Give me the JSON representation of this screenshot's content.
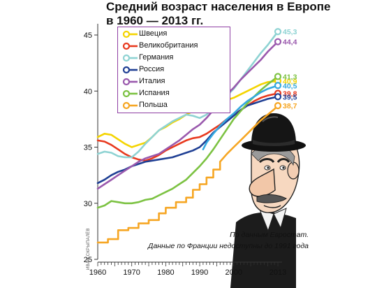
{
  "title": {
    "line1": "Средний возраст населения в Европе",
    "line2": "в 1960 — 2013 гг."
  },
  "source": {
    "line1": "По данным Евростат.",
    "line2": "Данные по Франции недоступны до 1991 года"
  },
  "credit": "ИВАН СКРЫПАЛЁВ",
  "chart_data": {
    "type": "line",
    "title": "Средний возраст населения в Европе в 1960 — 2013 гг.",
    "xlabel": "",
    "ylabel": "",
    "xlim": [
      1960,
      2013
    ],
    "ylim": [
      25,
      46
    ],
    "x_ticks": [
      1960,
      1970,
      1980,
      1990,
      2000,
      2013
    ],
    "y_ticks": [
      25,
      30,
      35,
      40,
      45
    ],
    "grid": false,
    "legend_position": "top-left",
    "series": [
      {
        "name": "Швеция",
        "color": "#f4d400",
        "end_label": "40,9",
        "points": [
          [
            1960,
            35.9
          ],
          [
            1962,
            36.2
          ],
          [
            1964,
            36.1
          ],
          [
            1966,
            35.7
          ],
          [
            1968,
            35.3
          ],
          [
            1970,
            35.0
          ],
          [
            1972,
            35.2
          ],
          [
            1974,
            35.4
          ],
          [
            1976,
            35.9
          ],
          [
            1978,
            36.5
          ],
          [
            1980,
            36.8
          ],
          [
            1982,
            37.2
          ],
          [
            1984,
            37.5
          ],
          [
            1986,
            37.9
          ],
          [
            1988,
            38.2
          ],
          [
            1990,
            38.4
          ],
          [
            1992,
            38.5
          ],
          [
            1994,
            38.6
          ],
          [
            1996,
            38.8
          ],
          [
            1998,
            39.2
          ],
          [
            2000,
            39.4
          ],
          [
            2002,
            39.7
          ],
          [
            2004,
            40.0
          ],
          [
            2006,
            40.3
          ],
          [
            2008,
            40.6
          ],
          [
            2010,
            40.8
          ],
          [
            2013,
            40.9
          ]
        ]
      },
      {
        "name": "Великобритания",
        "color": "#e8391e",
        "end_label": "39,8",
        "points": [
          [
            1960,
            35.6
          ],
          [
            1962,
            35.5
          ],
          [
            1964,
            35.2
          ],
          [
            1966,
            34.8
          ],
          [
            1968,
            34.4
          ],
          [
            1970,
            34.1
          ],
          [
            1972,
            33.9
          ],
          [
            1974,
            33.8
          ],
          [
            1976,
            34.0
          ],
          [
            1978,
            34.3
          ],
          [
            1980,
            34.7
          ],
          [
            1982,
            35.0
          ],
          [
            1984,
            35.3
          ],
          [
            1986,
            35.6
          ],
          [
            1988,
            35.8
          ],
          [
            1990,
            35.9
          ],
          [
            1992,
            36.2
          ],
          [
            1994,
            36.6
          ],
          [
            1996,
            37.0
          ],
          [
            1998,
            37.5
          ],
          [
            2000,
            37.9
          ],
          [
            2002,
            38.3
          ],
          [
            2004,
            38.7
          ],
          [
            2006,
            39.1
          ],
          [
            2008,
            39.4
          ],
          [
            2010,
            39.6
          ],
          [
            2013,
            39.8
          ]
        ]
      },
      {
        "name": "Германия",
        "color": "#8ed3d3",
        "end_label": "45,3",
        "points": [
          [
            1960,
            34.4
          ],
          [
            1962,
            34.6
          ],
          [
            1964,
            34.5
          ],
          [
            1966,
            34.2
          ],
          [
            1968,
            34.1
          ],
          [
            1970,
            34.1
          ],
          [
            1972,
            34.6
          ],
          [
            1974,
            35.3
          ],
          [
            1976,
            35.9
          ],
          [
            1978,
            36.5
          ],
          [
            1980,
            36.9
          ],
          [
            1982,
            37.3
          ],
          [
            1984,
            37.6
          ],
          [
            1986,
            37.9
          ],
          [
            1988,
            37.8
          ],
          [
            1990,
            37.6
          ],
          [
            1992,
            37.9
          ],
          [
            1994,
            38.5
          ],
          [
            1996,
            39.0
          ],
          [
            1998,
            39.6
          ],
          [
            2000,
            40.2
          ],
          [
            2002,
            41.0
          ],
          [
            2004,
            41.8
          ],
          [
            2006,
            42.6
          ],
          [
            2008,
            43.4
          ],
          [
            2010,
            44.1
          ],
          [
            2012,
            44.9
          ],
          [
            2013,
            45.3
          ]
        ]
      },
      {
        "name": "Россия",
        "color": "#1f3f94",
        "end_label": "39,5",
        "points": [
          [
            1960,
            31.8
          ],
          [
            1962,
            32.1
          ],
          [
            1964,
            32.5
          ],
          [
            1966,
            32.8
          ],
          [
            1968,
            33.0
          ],
          [
            1970,
            33.3
          ],
          [
            1972,
            33.5
          ],
          [
            1974,
            33.7
          ],
          [
            1976,
            33.8
          ],
          [
            1978,
            33.9
          ],
          [
            1980,
            34.0
          ],
          [
            1982,
            34.1
          ],
          [
            1984,
            34.3
          ],
          [
            1986,
            34.5
          ],
          [
            1988,
            34.7
          ],
          [
            1990,
            35.0
          ],
          [
            1992,
            35.6
          ],
          [
            1994,
            36.3
          ],
          [
            1996,
            36.8
          ],
          [
            1998,
            37.3
          ],
          [
            2000,
            37.8
          ],
          [
            2002,
            38.3
          ],
          [
            2004,
            38.7
          ],
          [
            2006,
            38.9
          ],
          [
            2008,
            39.1
          ],
          [
            2010,
            39.3
          ],
          [
            2013,
            39.5
          ]
        ]
      },
      {
        "name": "Италия",
        "color": "#9a59ad",
        "end_label": "44,4",
        "points": [
          [
            1960,
            31.3
          ],
          [
            1962,
            31.7
          ],
          [
            1964,
            32.1
          ],
          [
            1966,
            32.5
          ],
          [
            1968,
            32.9
          ],
          [
            1970,
            33.3
          ],
          [
            1972,
            33.7
          ],
          [
            1974,
            34.0
          ],
          [
            1976,
            34.2
          ],
          [
            1978,
            34.4
          ],
          [
            1980,
            34.8
          ],
          [
            1982,
            35.2
          ],
          [
            1984,
            35.6
          ],
          [
            1986,
            36.1
          ],
          [
            1988,
            36.6
          ],
          [
            1990,
            37.0
          ],
          [
            1992,
            37.6
          ],
          [
            1994,
            38.3
          ],
          [
            1996,
            39.0
          ],
          [
            1998,
            39.7
          ],
          [
            2000,
            40.3
          ],
          [
            2002,
            41.0
          ],
          [
            2004,
            41.6
          ],
          [
            2006,
            42.2
          ],
          [
            2008,
            42.8
          ],
          [
            2010,
            43.5
          ],
          [
            2012,
            44.1
          ],
          [
            2013,
            44.4
          ]
        ]
      },
      {
        "name": "Испания",
        "color": "#7cc242",
        "end_label": "41,3",
        "points": [
          [
            1960,
            29.6
          ],
          [
            1962,
            29.8
          ],
          [
            1964,
            30.2
          ],
          [
            1966,
            30.1
          ],
          [
            1968,
            30.0
          ],
          [
            1970,
            30.0
          ],
          [
            1972,
            30.1
          ],
          [
            1974,
            30.3
          ],
          [
            1976,
            30.4
          ],
          [
            1978,
            30.7
          ],
          [
            1980,
            31.0
          ],
          [
            1982,
            31.3
          ],
          [
            1984,
            31.7
          ],
          [
            1986,
            32.1
          ],
          [
            1988,
            32.7
          ],
          [
            1990,
            33.3
          ],
          [
            1992,
            34.0
          ],
          [
            1994,
            34.8
          ],
          [
            1996,
            35.7
          ],
          [
            1998,
            36.6
          ],
          [
            2000,
            37.5
          ],
          [
            2002,
            38.2
          ],
          [
            2004,
            38.9
          ],
          [
            2006,
            39.5
          ],
          [
            2008,
            40.1
          ],
          [
            2010,
            40.6
          ],
          [
            2013,
            41.3
          ]
        ]
      },
      {
        "name": "Польша",
        "color": "#f6a623",
        "end_label": "38,7",
        "points": [
          [
            1960,
            26.5
          ],
          [
            1962,
            26.5
          ],
          [
            1963,
            26.5
          ],
          [
            1963,
            26.8
          ],
          [
            1966,
            26.8
          ],
          [
            1966,
            27.6
          ],
          [
            1969,
            27.6
          ],
          [
            1969,
            27.8
          ],
          [
            1972,
            27.8
          ],
          [
            1972,
            28.2
          ],
          [
            1975,
            28.2
          ],
          [
            1975,
            28.5
          ],
          [
            1978,
            28.5
          ],
          [
            1978,
            29.1
          ],
          [
            1980,
            29.1
          ],
          [
            1980,
            29.6
          ],
          [
            1983,
            29.6
          ],
          [
            1983,
            30.1
          ],
          [
            1986,
            30.1
          ],
          [
            1986,
            30.5
          ],
          [
            1988,
            30.5
          ],
          [
            1988,
            31.2
          ],
          [
            1990,
            31.2
          ],
          [
            1990,
            31.7
          ],
          [
            1992,
            31.7
          ],
          [
            1992,
            32.3
          ],
          [
            1994,
            32.3
          ],
          [
            1994,
            33.0
          ],
          [
            1996,
            33.0
          ],
          [
            1996,
            33.7
          ],
          [
            1998,
            34.4
          ],
          [
            2000,
            35.0
          ],
          [
            2002,
            35.6
          ],
          [
            2004,
            36.2
          ],
          [
            2006,
            36.8
          ],
          [
            2008,
            37.4
          ],
          [
            2010,
            37.9
          ],
          [
            2012,
            38.4
          ],
          [
            2013,
            38.7
          ]
        ]
      },
      {
        "name": "Франция",
        "color": "#35a9e0",
        "end_label": "40,5",
        "points": [
          [
            1991,
            34.8
          ],
          [
            1992,
            35.4
          ],
          [
            1994,
            36.2
          ],
          [
            1996,
            36.9
          ],
          [
            1998,
            37.5
          ],
          [
            2000,
            38.0
          ],
          [
            2002,
            38.6
          ],
          [
            2004,
            39.1
          ],
          [
            2006,
            39.5
          ],
          [
            2008,
            39.9
          ],
          [
            2010,
            40.2
          ],
          [
            2013,
            40.5
          ]
        ]
      }
    ]
  }
}
